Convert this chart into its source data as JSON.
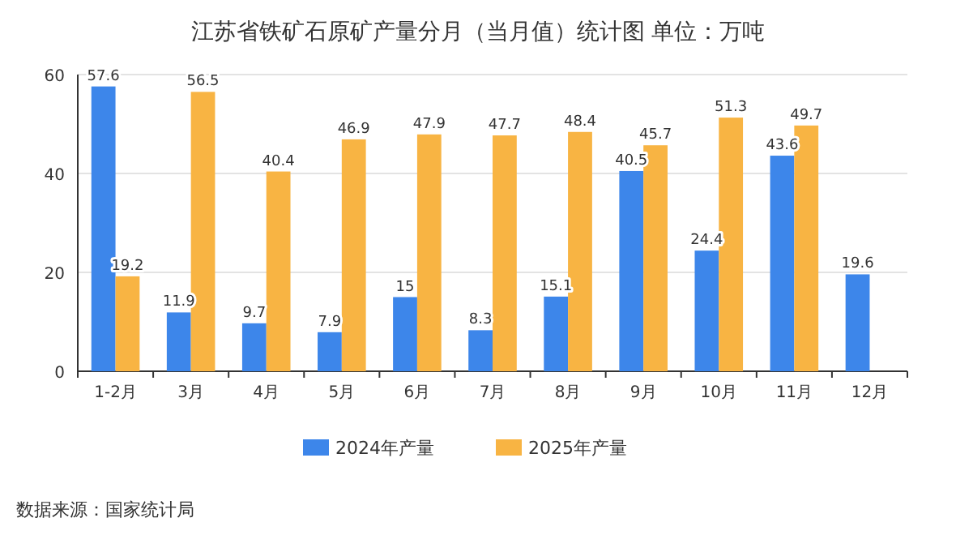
{
  "chart_data": {
    "type": "bar",
    "title": "江苏省铁矿石原矿产量分月（当月值）统计图 单位：万吨",
    "categories": [
      "1-2月",
      "3月",
      "4月",
      "5月",
      "6月",
      "7月",
      "8月",
      "9月",
      "10月",
      "11月",
      "12月"
    ],
    "series": [
      {
        "name": "2024年产量",
        "color": "#3d86ea",
        "values": [
          57.6,
          11.9,
          9.7,
          7.9,
          15,
          8.3,
          15.1,
          40.5,
          24.4,
          43.6,
          19.6
        ]
      },
      {
        "name": "2025年产量",
        "color": "#f8b443",
        "values": [
          19.2,
          56.5,
          40.4,
          46.9,
          47.9,
          47.7,
          48.4,
          45.7,
          51.3,
          49.7,
          null
        ]
      }
    ],
    "ylim": [
      0,
      60
    ],
    "yticks": [
      0,
      20,
      40,
      60
    ],
    "grid": "y",
    "legend": "bottom",
    "data_labels": true,
    "annotations": [
      "数据来源：国家统计局"
    ]
  }
}
